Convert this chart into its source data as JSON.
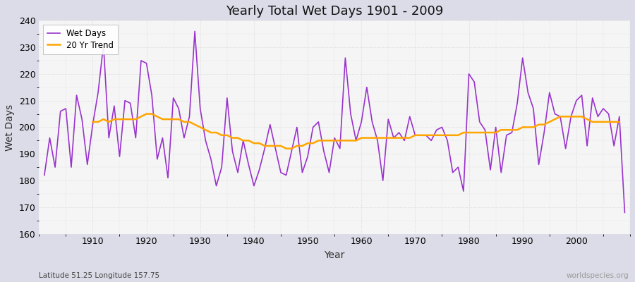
{
  "title": "Yearly Total Wet Days 1901 - 2009",
  "xlabel": "Year",
  "ylabel": "Wet Days",
  "subtitle": "Latitude 51.25 Longitude 157.75",
  "watermark": "worldspecies.org",
  "wet_days_color": "#9933CC",
  "trend_color": "#FFA500",
  "bg_color": "#DCDCE8",
  "plot_bg_color": "#F5F5F5",
  "ylim": [
    160,
    240
  ],
  "yticks": [
    160,
    170,
    180,
    190,
    200,
    210,
    220,
    230,
    240
  ],
  "years": [
    1901,
    1902,
    1903,
    1904,
    1905,
    1906,
    1907,
    1908,
    1909,
    1910,
    1911,
    1912,
    1913,
    1914,
    1915,
    1916,
    1917,
    1918,
    1919,
    1920,
    1921,
    1922,
    1923,
    1924,
    1925,
    1926,
    1927,
    1928,
    1929,
    1930,
    1931,
    1932,
    1933,
    1934,
    1935,
    1936,
    1937,
    1938,
    1939,
    1940,
    1941,
    1942,
    1943,
    1944,
    1945,
    1946,
    1947,
    1948,
    1949,
    1950,
    1951,
    1952,
    1953,
    1954,
    1955,
    1956,
    1957,
    1958,
    1959,
    1960,
    1961,
    1962,
    1963,
    1964,
    1965,
    1966,
    1967,
    1968,
    1969,
    1970,
    1971,
    1972,
    1973,
    1974,
    1975,
    1976,
    1977,
    1978,
    1979,
    1980,
    1981,
    1982,
    1983,
    1984,
    1985,
    1986,
    1987,
    1988,
    1989,
    1990,
    1991,
    1992,
    1993,
    1994,
    1995,
    1996,
    1997,
    1998,
    1999,
    2000,
    2001,
    2002,
    2003,
    2004,
    2005,
    2006,
    2007,
    2008,
    2009
  ],
  "wet_days": [
    182,
    196,
    185,
    206,
    207,
    185,
    212,
    203,
    186,
    201,
    213,
    231,
    196,
    208,
    189,
    210,
    209,
    196,
    225,
    224,
    212,
    188,
    196,
    181,
    211,
    207,
    196,
    204,
    236,
    207,
    195,
    188,
    178,
    185,
    211,
    191,
    183,
    195,
    186,
    178,
    184,
    192,
    201,
    192,
    183,
    182,
    191,
    200,
    183,
    189,
    200,
    202,
    191,
    183,
    196,
    192,
    226,
    205,
    195,
    202,
    215,
    202,
    195,
    180,
    203,
    196,
    198,
    195,
    204,
    197,
    197,
    197,
    195,
    199,
    200,
    195,
    183,
    185,
    176,
    220,
    217,
    202,
    199,
    184,
    200,
    183,
    197,
    198,
    209,
    226,
    213,
    207,
    186,
    198,
    213,
    205,
    204,
    192,
    204,
    210,
    212,
    193,
    211,
    204,
    207,
    205,
    193,
    204,
    168
  ],
  "trend": [
    null,
    null,
    null,
    null,
    null,
    null,
    null,
    null,
    null,
    202,
    202,
    203,
    202,
    203,
    203,
    203,
    203,
    203,
    204,
    205,
    205,
    204,
    203,
    203,
    203,
    203,
    202,
    202,
    201,
    200,
    199,
    198,
    198,
    197,
    197,
    196,
    196,
    195,
    195,
    194,
    194,
    193,
    193,
    193,
    193,
    192,
    192,
    193,
    193,
    194,
    194,
    195,
    195,
    195,
    195,
    195,
    195,
    195,
    195,
    196,
    196,
    196,
    196,
    196,
    196,
    196,
    196,
    196,
    196,
    197,
    197,
    197,
    197,
    197,
    197,
    197,
    197,
    197,
    198,
    198,
    198,
    198,
    198,
    198,
    198,
    199,
    199,
    199,
    199,
    200,
    200,
    200,
    201,
    201,
    202,
    203,
    204,
    204,
    204,
    204,
    204,
    203,
    202,
    202,
    202,
    202,
    202,
    202,
    null
  ]
}
